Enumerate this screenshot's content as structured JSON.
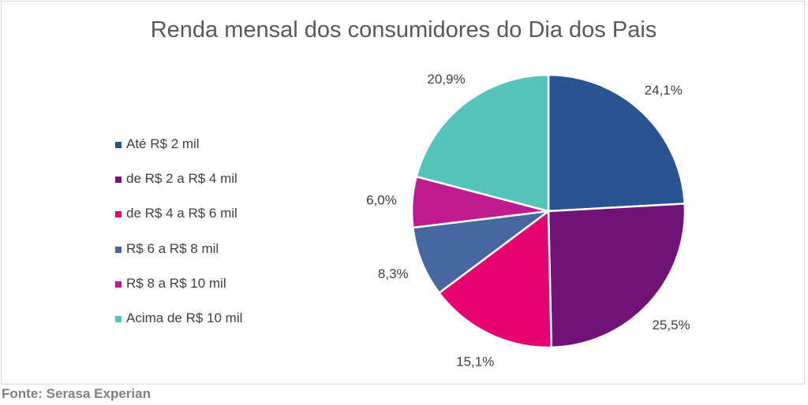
{
  "chart_data": {
    "type": "pie",
    "title": "Renda mensal dos consumidores do Dia dos Pais",
    "legend_position": "left",
    "slices": [
      {
        "label": "Até R$ 2 mil",
        "value": 24.1,
        "value_label": "24,1%",
        "color": "#2a5391"
      },
      {
        "label": "de R$ 2 a R$ 4 mil",
        "value": 25.5,
        "value_label": "25,5%",
        "color": "#721276"
      },
      {
        "label": "de R$ 4 a R$ 6 mil",
        "value": 15.1,
        "value_label": "15,1%",
        "color": "#e5016f"
      },
      {
        "label": "R$ 6 a R$ 8 mil",
        "value": 8.3,
        "value_label": "8,3%",
        "color": "#47679f"
      },
      {
        "label": "R$ 8 a R$ 10 mil",
        "value": 6.0,
        "value_label": "6,0%",
        "color": "#c01b8e"
      },
      {
        "label": "Acima de R$ 10 mil",
        "value": 20.9,
        "value_label": "20,9%",
        "color": "#56c4bb"
      }
    ]
  },
  "source": "Fonte: Serasa Experian"
}
